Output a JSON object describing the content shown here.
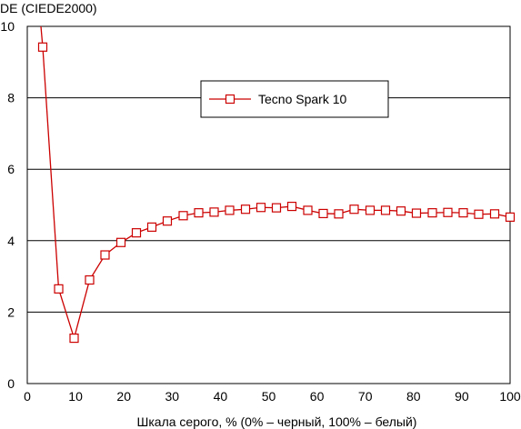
{
  "chart_data": {
    "type": "line",
    "title": "",
    "ylabel": "DE (CIEDE2000)",
    "xlabel": "Шкала серого, % (0% – черный, 100% – белый)",
    "xlim": [
      0,
      100
    ],
    "ylim": [
      0,
      10
    ],
    "x_ticks": [
      0,
      10,
      20,
      30,
      40,
      50,
      60,
      70,
      80,
      90,
      100
    ],
    "y_ticks": [
      0,
      2,
      4,
      6,
      8,
      10
    ],
    "grid": "horizontal",
    "legend_position": "top-center",
    "series": [
      {
        "name": "Tecno Spark 10",
        "color": "#cc0000",
        "marker": "square-open",
        "x": [
          2.5,
          3.2,
          6.5,
          9.7,
          12.9,
          16.1,
          19.4,
          22.6,
          25.8,
          29.0,
          32.3,
          35.5,
          38.7,
          41.9,
          45.2,
          48.4,
          51.6,
          54.8,
          58.1,
          61.3,
          64.5,
          67.7,
          71.0,
          74.2,
          77.4,
          80.6,
          83.9,
          87.1,
          90.3,
          93.5,
          96.8,
          100
        ],
        "y": [
          10.5,
          9.42,
          2.65,
          1.27,
          2.9,
          3.6,
          3.95,
          4.22,
          4.38,
          4.55,
          4.7,
          4.78,
          4.8,
          4.85,
          4.88,
          4.93,
          4.92,
          4.96,
          4.85,
          4.76,
          4.75,
          4.88,
          4.85,
          4.85,
          4.83,
          4.77,
          4.78,
          4.79,
          4.78,
          4.74,
          4.75,
          4.66
        ],
        "markers_from_index": 1
      }
    ]
  }
}
